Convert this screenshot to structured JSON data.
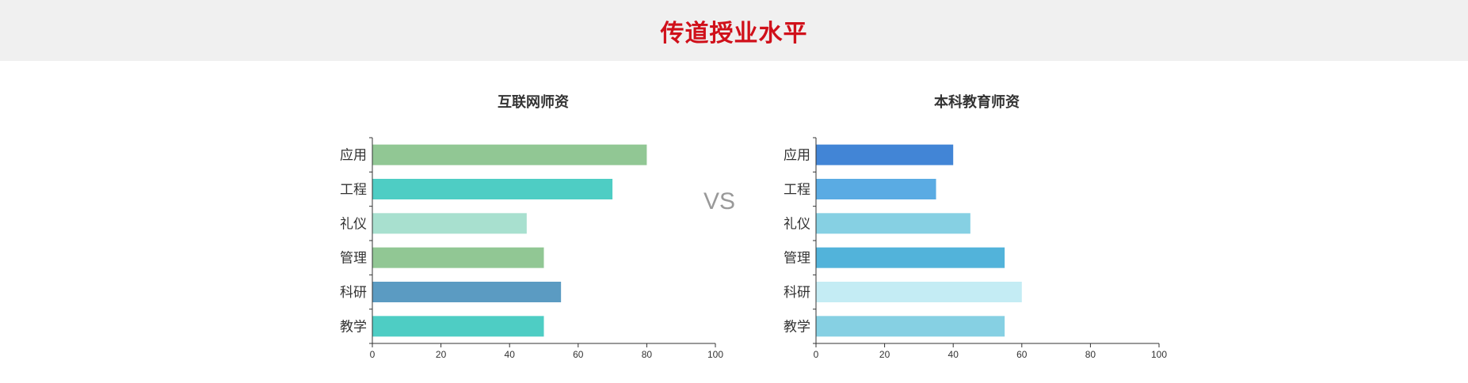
{
  "header": {
    "title": "传道授业水平"
  },
  "vs_label": "VS",
  "chart_data": [
    {
      "type": "bar",
      "orientation": "horizontal",
      "title": "互联网师资",
      "categories": [
        "应用",
        "工程",
        "礼仪",
        "管理",
        "科研",
        "教学"
      ],
      "values": [
        80,
        70,
        45,
        50,
        55,
        50
      ],
      "colors": [
        "#91c794",
        "#4ecdc4",
        "#a8e0cf",
        "#91c794",
        "#5b9bc2",
        "#4ecdc4"
      ],
      "xlim": [
        0,
        100
      ],
      "xticks": [
        "0",
        "20",
        "40",
        "60",
        "80",
        "100"
      ],
      "grid": false
    },
    {
      "type": "bar",
      "orientation": "horizontal",
      "title": "本科教育师资",
      "categories": [
        "应用",
        "工程",
        "礼仪",
        "管理",
        "科研",
        "教学"
      ],
      "values": [
        40,
        35,
        45,
        55,
        60,
        55
      ],
      "colors": [
        "#4285d6",
        "#5aabe3",
        "#86d0e3",
        "#52b3da",
        "#c4ecf4",
        "#86d0e3"
      ],
      "xlim": [
        0,
        100
      ],
      "xticks": [
        "0",
        "20",
        "40",
        "60",
        "80",
        "100"
      ],
      "grid": false
    }
  ]
}
